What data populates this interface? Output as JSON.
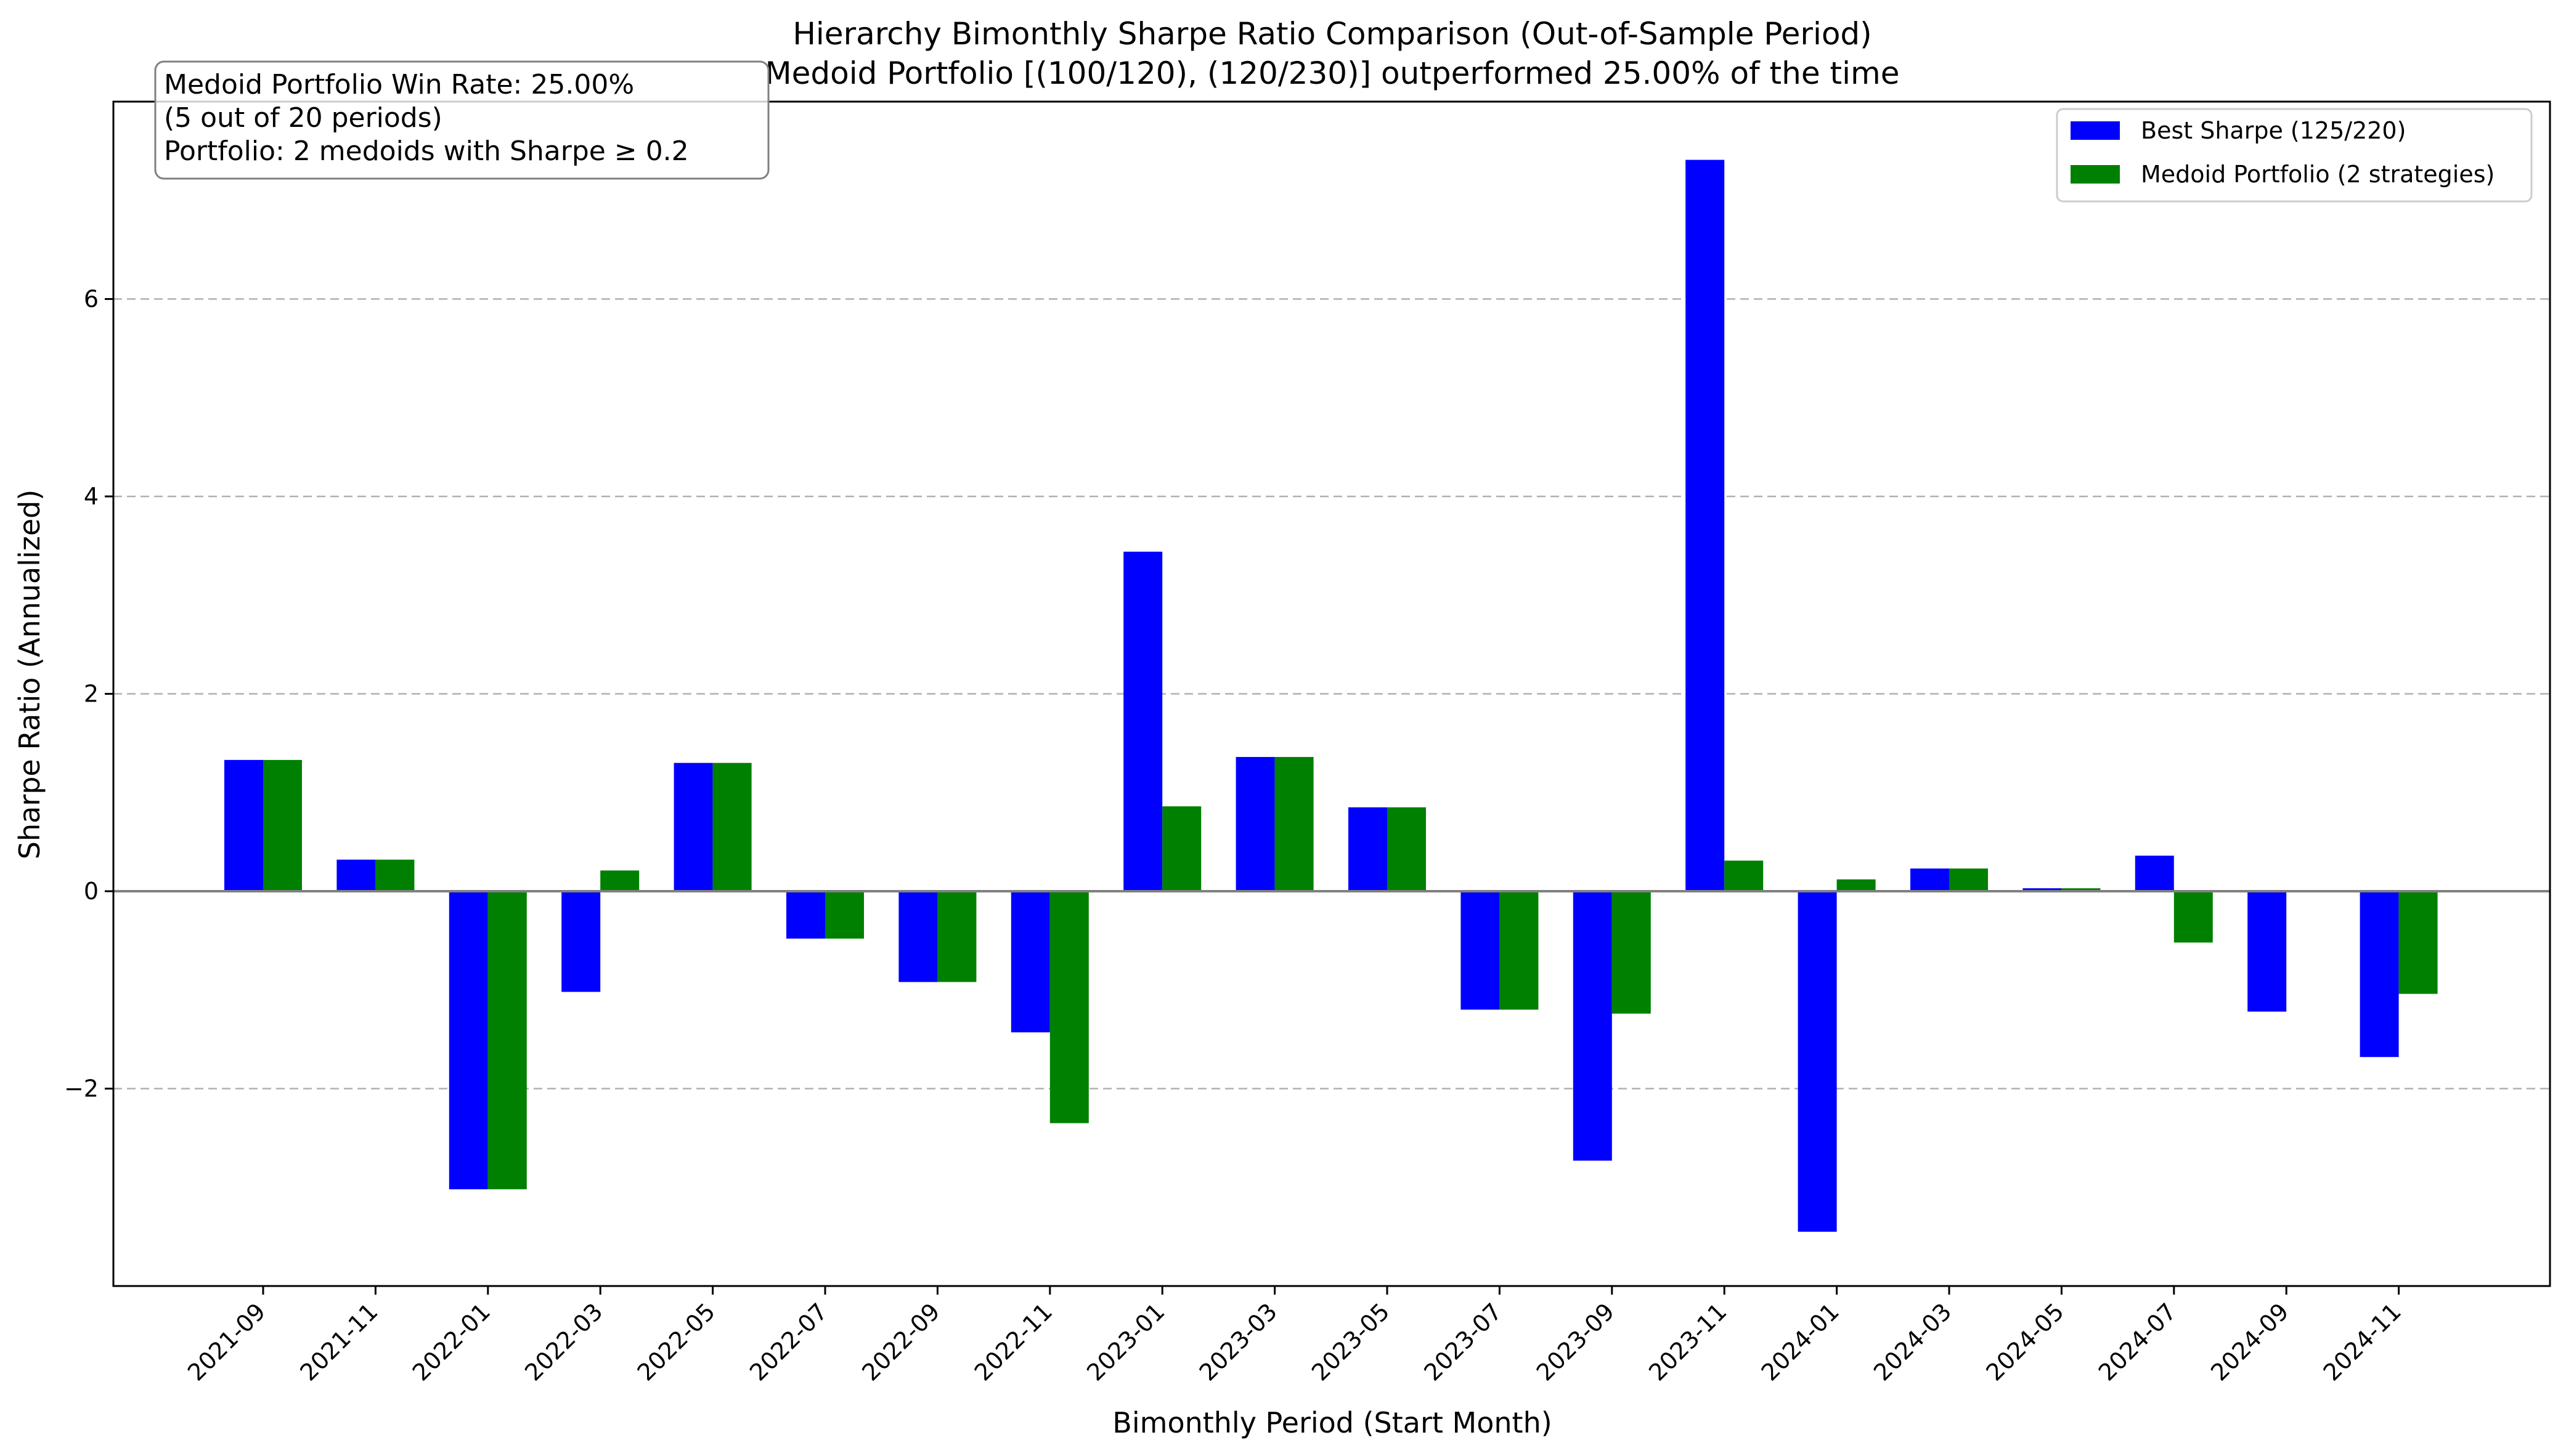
{
  "chart_data": {
    "type": "bar",
    "title": "Hierarchy Bimonthly Sharpe Ratio Comparison (Out-of-Sample Period)",
    "subtitle": "Medoid Portfolio [(100/120), (120/230)] outperformed 25.00% of the time",
    "xlabel": "Bimonthly Period (Start Month)",
    "ylabel": "Sharpe Ratio (Annualized)",
    "ylim": [
      -4.0,
      8.0
    ],
    "yticks": [
      -2,
      0,
      2,
      4,
      6
    ],
    "ytick_labels": [
      "−2",
      "0",
      "2",
      "4",
      "6"
    ],
    "grid": "y-dashed",
    "legend_position": "top-right",
    "categories": [
      "2021-09",
      "2021-11",
      "2022-01",
      "2022-03",
      "2022-05",
      "2022-07",
      "2022-09",
      "2022-11",
      "2023-01",
      "2023-03",
      "2023-05",
      "2023-07",
      "2023-09",
      "2023-11",
      "2024-01",
      "2024-03",
      "2024-05",
      "2024-07",
      "2024-09",
      "2024-11"
    ],
    "series": [
      {
        "name": "Best Sharpe (125/220)",
        "color": "#0000ff",
        "values": [
          1.33,
          0.32,
          -3.02,
          -1.02,
          1.3,
          -0.48,
          -0.92,
          -1.43,
          3.44,
          1.36,
          0.85,
          -1.2,
          -2.73,
          7.41,
          -3.45,
          0.23,
          0.03,
          0.36,
          -1.22,
          -1.68
        ]
      },
      {
        "name": "Medoid Portfolio (2 strategies)",
        "color": "#008000",
        "values": [
          1.33,
          0.32,
          -3.02,
          0.21,
          1.3,
          -0.48,
          -0.92,
          -2.35,
          0.86,
          1.36,
          0.85,
          -1.2,
          -1.24,
          0.31,
          0.12,
          0.23,
          0.03,
          -0.52,
          0.0,
          -1.04
        ]
      }
    ],
    "annotation": [
      "Medoid Portfolio Win Rate: 25.00%",
      "(5 out of 20 periods)",
      "Portfolio: 2 medoids with Sharpe ≥ 0.2"
    ]
  }
}
